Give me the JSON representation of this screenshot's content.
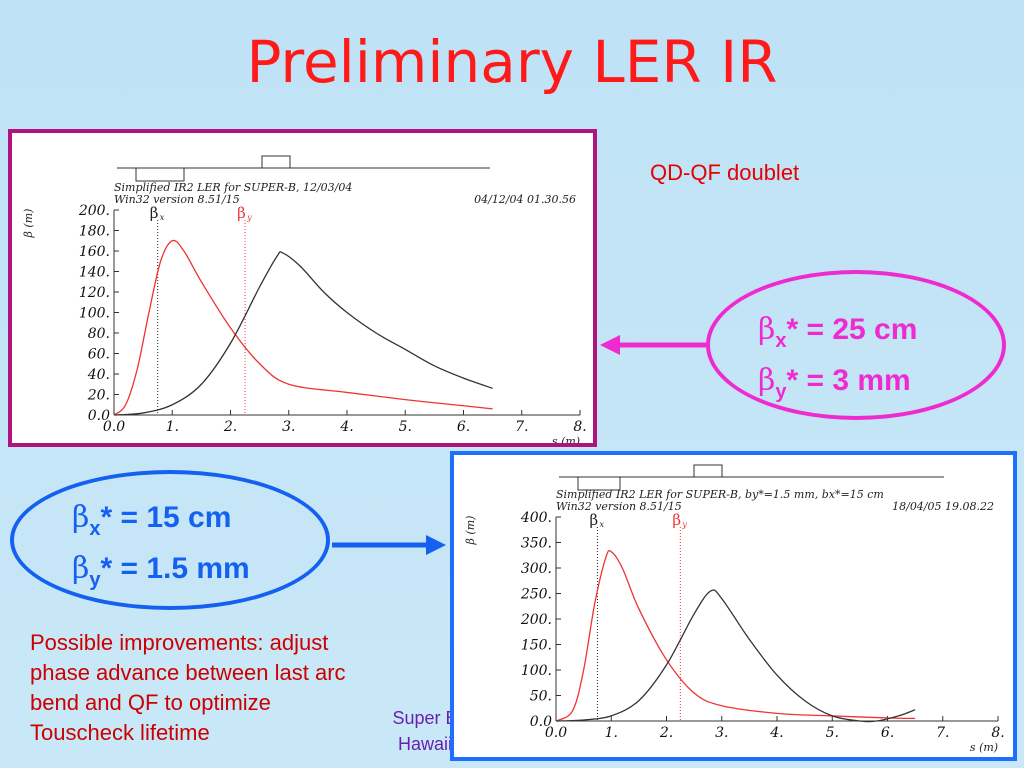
{
  "title": "Preliminary LER IR",
  "note": "QD-QF doublet",
  "callout_top": {
    "line1_sym": "β",
    "line1_sub": "x",
    "line1_rest": "* = 25 cm",
    "line2_sym": "β",
    "line2_sub": "y",
    "line2_rest": "* = 3 mm"
  },
  "callout_bottom": {
    "line1_sym": "β",
    "line1_sub": "x",
    "line1_rest": "* = 15 cm",
    "line2_sym": "β",
    "line2_sub": "y",
    "line2_rest": "* = 1.5 mm"
  },
  "improvements": [
    "Possible improvements: adjust",
    "phase advance between last arc",
    "bend and QF to optimize",
    "Touscheck lifetime"
  ],
  "footer": [
    "Super B",
    "Hawaii"
  ],
  "colors": {
    "title": "#ff1a1a",
    "frame_top": "#b0127e",
    "frame_bottom": "#1f6fff",
    "callout_top": "#ee2bd0",
    "callout_bottom": "#1460f0",
    "beta_x": "#ee3333",
    "beta_y": "#333333"
  },
  "chart_data": [
    {
      "type": "line",
      "header": "Simplified IR2 LER for SUPER-B, 12/03/04",
      "version": "Win32 version 8.51/15",
      "timestamp": "04/12/04  01.30.56",
      "ylabel": "β (m)",
      "xlabel": "s (m)",
      "xlim": [
        0,
        8
      ],
      "ylim": [
        0,
        200
      ],
      "xticks": [
        "0.0",
        "1.",
        "2.",
        "3.",
        "4.",
        "5.",
        "6.",
        "7.",
        "8."
      ],
      "yticks": [
        "0.0",
        "20.",
        "40.",
        "60.",
        "80.",
        "100.",
        "120.",
        "140.",
        "160.",
        "180.",
        "200."
      ],
      "markers": [
        {
          "label": "β",
          "sub": "x",
          "x": 0.75,
          "color": "#222222"
        },
        {
          "label": "β",
          "sub": "y",
          "x": 2.25,
          "color": "#ee3333"
        }
      ],
      "series": [
        {
          "color": "#ee3333",
          "x": [
            0,
            0.2,
            0.4,
            0.6,
            0.8,
            1.0,
            1.2,
            1.5,
            2.0,
            2.5,
            3.0,
            4.0,
            5.0,
            6.0,
            6.5
          ],
          "y": [
            0,
            10,
            45,
            100,
            150,
            170,
            160,
            130,
            85,
            50,
            30,
            22,
            15,
            9,
            6
          ]
        },
        {
          "color": "#333333",
          "x": [
            0,
            0.5,
            1.0,
            1.5,
            2.0,
            2.5,
            2.8,
            2.9,
            3.2,
            3.6,
            4.0,
            4.5,
            5.0,
            5.5,
            6.0,
            6.5
          ],
          "y": [
            0,
            2,
            10,
            30,
            70,
            125,
            155,
            158,
            145,
            120,
            100,
            80,
            64,
            48,
            36,
            26
          ]
        }
      ]
    },
    {
      "type": "line",
      "header": "Simplified IR2 LER for SUPER-B, by*=1.5 mm, bx*=15 cm",
      "version": "Win32 version 8.51/15",
      "timestamp": "18/04/05  19.08.22",
      "ylabel": "β (m)",
      "xlabel": "s (m)",
      "xlim": [
        0,
        8
      ],
      "ylim": [
        0,
        400
      ],
      "xticks": [
        "0.0",
        "1.",
        "2.",
        "3.",
        "4.",
        "5.",
        "6.",
        "7.",
        "8."
      ],
      "yticks": [
        "0.0",
        "50.",
        "100.",
        "150.",
        "200.",
        "250.",
        "300.",
        "350.",
        "400."
      ],
      "markers": [
        {
          "label": "β",
          "sub": "x",
          "x": 0.75,
          "color": "#222222"
        },
        {
          "label": "β",
          "sub": "y",
          "x": 2.25,
          "color": "#ee3333"
        }
      ],
      "series": [
        {
          "color": "#ee3333",
          "x": [
            0,
            0.3,
            0.5,
            0.7,
            0.9,
            1.0,
            1.2,
            1.5,
            2.0,
            2.5,
            3.0,
            4.0,
            5.0,
            6.0,
            6.5
          ],
          "y": [
            0,
            20,
            100,
            230,
            320,
            332,
            300,
            220,
            120,
            55,
            30,
            15,
            10,
            6,
            5
          ]
        },
        {
          "color": "#333333",
          "x": [
            0,
            0.5,
            1.0,
            1.5,
            2.0,
            2.5,
            2.8,
            3.0,
            3.5,
            4.0,
            4.5,
            5.0,
            5.5,
            5.8,
            6.2,
            6.5
          ],
          "y": [
            0,
            2,
            10,
            40,
            110,
            210,
            255,
            240,
            160,
            90,
            40,
            10,
            0,
            0,
            10,
            22
          ]
        }
      ]
    }
  ]
}
